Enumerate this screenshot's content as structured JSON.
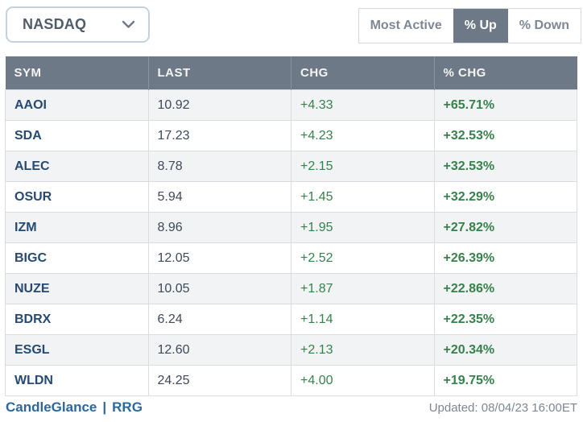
{
  "exchange_selector": {
    "value": "NASDAQ"
  },
  "tabs": [
    {
      "label": "Most Active",
      "selected": false
    },
    {
      "label": "% Up",
      "selected": true
    },
    {
      "label": "% Down",
      "selected": false
    }
  ],
  "table": {
    "columns": [
      "SYM",
      "LAST",
      "CHG",
      "% CHG"
    ],
    "rows": [
      {
        "sym": "AAOI",
        "last": "10.92",
        "chg": "+4.33",
        "pct": "+65.71%"
      },
      {
        "sym": "SDA",
        "last": "17.23",
        "chg": "+4.23",
        "pct": "+32.53%"
      },
      {
        "sym": "ALEC",
        "last": "8.78",
        "chg": "+2.15",
        "pct": "+32.53%"
      },
      {
        "sym": "OSUR",
        "last": "5.94",
        "chg": "+1.45",
        "pct": "+32.29%"
      },
      {
        "sym": "IZM",
        "last": "8.96",
        "chg": "+1.95",
        "pct": "+27.82%"
      },
      {
        "sym": "BIGC",
        "last": "12.05",
        "chg": "+2.52",
        "pct": "+26.39%"
      },
      {
        "sym": "NUZE",
        "last": "10.05",
        "chg": "+1.87",
        "pct": "+22.86%"
      },
      {
        "sym": "BDRX",
        "last": "6.24",
        "chg": "+1.14",
        "pct": "+22.35%"
      },
      {
        "sym": "ESGL",
        "last": "12.60",
        "chg": "+2.13",
        "pct": "+20.34%"
      },
      {
        "sym": "WLDN",
        "last": "24.25",
        "chg": "+4.00",
        "pct": "+19.75%"
      }
    ]
  },
  "footer": {
    "links": [
      "CandleGlance",
      "RRG"
    ],
    "separator": "|",
    "updated": "Updated: 08/04/23 16:00ET"
  },
  "icons": {
    "dropdown_chevron": "chevron-down-icon"
  },
  "colors": {
    "header_bg": "#6e7987",
    "positive": "#37814d",
    "symbol_link": "#264a70",
    "footer_link": "#2c689c",
    "row_alt_bg": "#f2f3f5",
    "border": "#d9dce1",
    "selected_tab_bg": "#6e7987"
  }
}
